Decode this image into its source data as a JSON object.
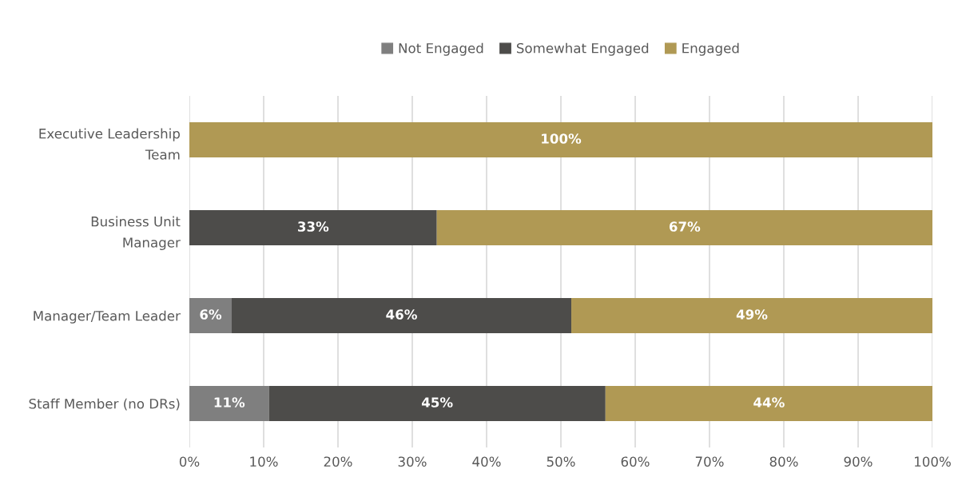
{
  "chart_data": {
    "type": "bar",
    "orientation": "horizontal",
    "stacked": true,
    "categories": [
      "Executive Leadership\nTeam",
      "Business Unit\nManager",
      "Manager/Team Leader",
      "Staff Member (no DRs)"
    ],
    "series": [
      {
        "name": "Not Engaged",
        "color": "#7f7f7f",
        "values": [
          null,
          null,
          5.7,
          10.7
        ],
        "value_labels": [
          null,
          null,
          "6%",
          "11%"
        ]
      },
      {
        "name": "Somewhat Engaged",
        "color": "#4d4c4a",
        "values": [
          null,
          33.3,
          45.7,
          45.3
        ],
        "value_labels": [
          null,
          "33%",
          "46%",
          "45%"
        ]
      },
      {
        "name": "Engaged",
        "color": "#b09954",
        "values": [
          100,
          66.7,
          48.6,
          44.0
        ],
        "value_labels": [
          "100%",
          "67%",
          "49%",
          "44%"
        ]
      }
    ],
    "xlim": [
      0,
      100
    ],
    "xticks": [
      {
        "value": 0,
        "label": "0%"
      },
      {
        "value": 10,
        "label": "10%"
      },
      {
        "value": 20,
        "label": "20%"
      },
      {
        "value": 30,
        "label": "30%"
      },
      {
        "value": 40,
        "label": "40%"
      },
      {
        "value": 50,
        "label": "50%"
      },
      {
        "value": 60,
        "label": "60%"
      },
      {
        "value": 70,
        "label": "70%"
      },
      {
        "value": 80,
        "label": "80%"
      },
      {
        "value": 90,
        "label": "90%"
      },
      {
        "value": 100,
        "label": "100%"
      }
    ],
    "grid": "x",
    "legend": "top"
  }
}
